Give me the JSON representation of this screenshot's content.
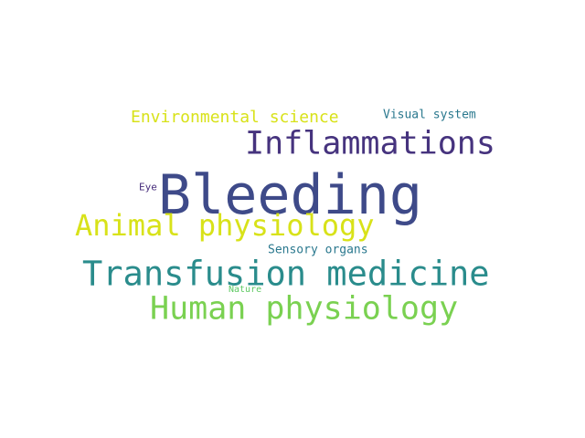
{
  "words": [
    {
      "text": "Bleeding",
      "color": "#3e4a89"
    },
    {
      "text": "Transfusion medicine",
      "color": "#2a8c8c"
    },
    {
      "text": "Inflammations",
      "color": "#46337e"
    },
    {
      "text": "Human physiology",
      "color": "#7ad151"
    },
    {
      "text": "Animal physiology",
      "color": "#d8e219"
    },
    {
      "text": "Environmental science",
      "color": "#d8e219"
    },
    {
      "text": "Visual system",
      "color": "#2a788e"
    },
    {
      "text": "Sensory organs",
      "color": "#2a788e"
    },
    {
      "text": "Eye",
      "color": "#472d7b"
    },
    {
      "text": "Nature",
      "color": "#5ec962"
    }
  ]
}
